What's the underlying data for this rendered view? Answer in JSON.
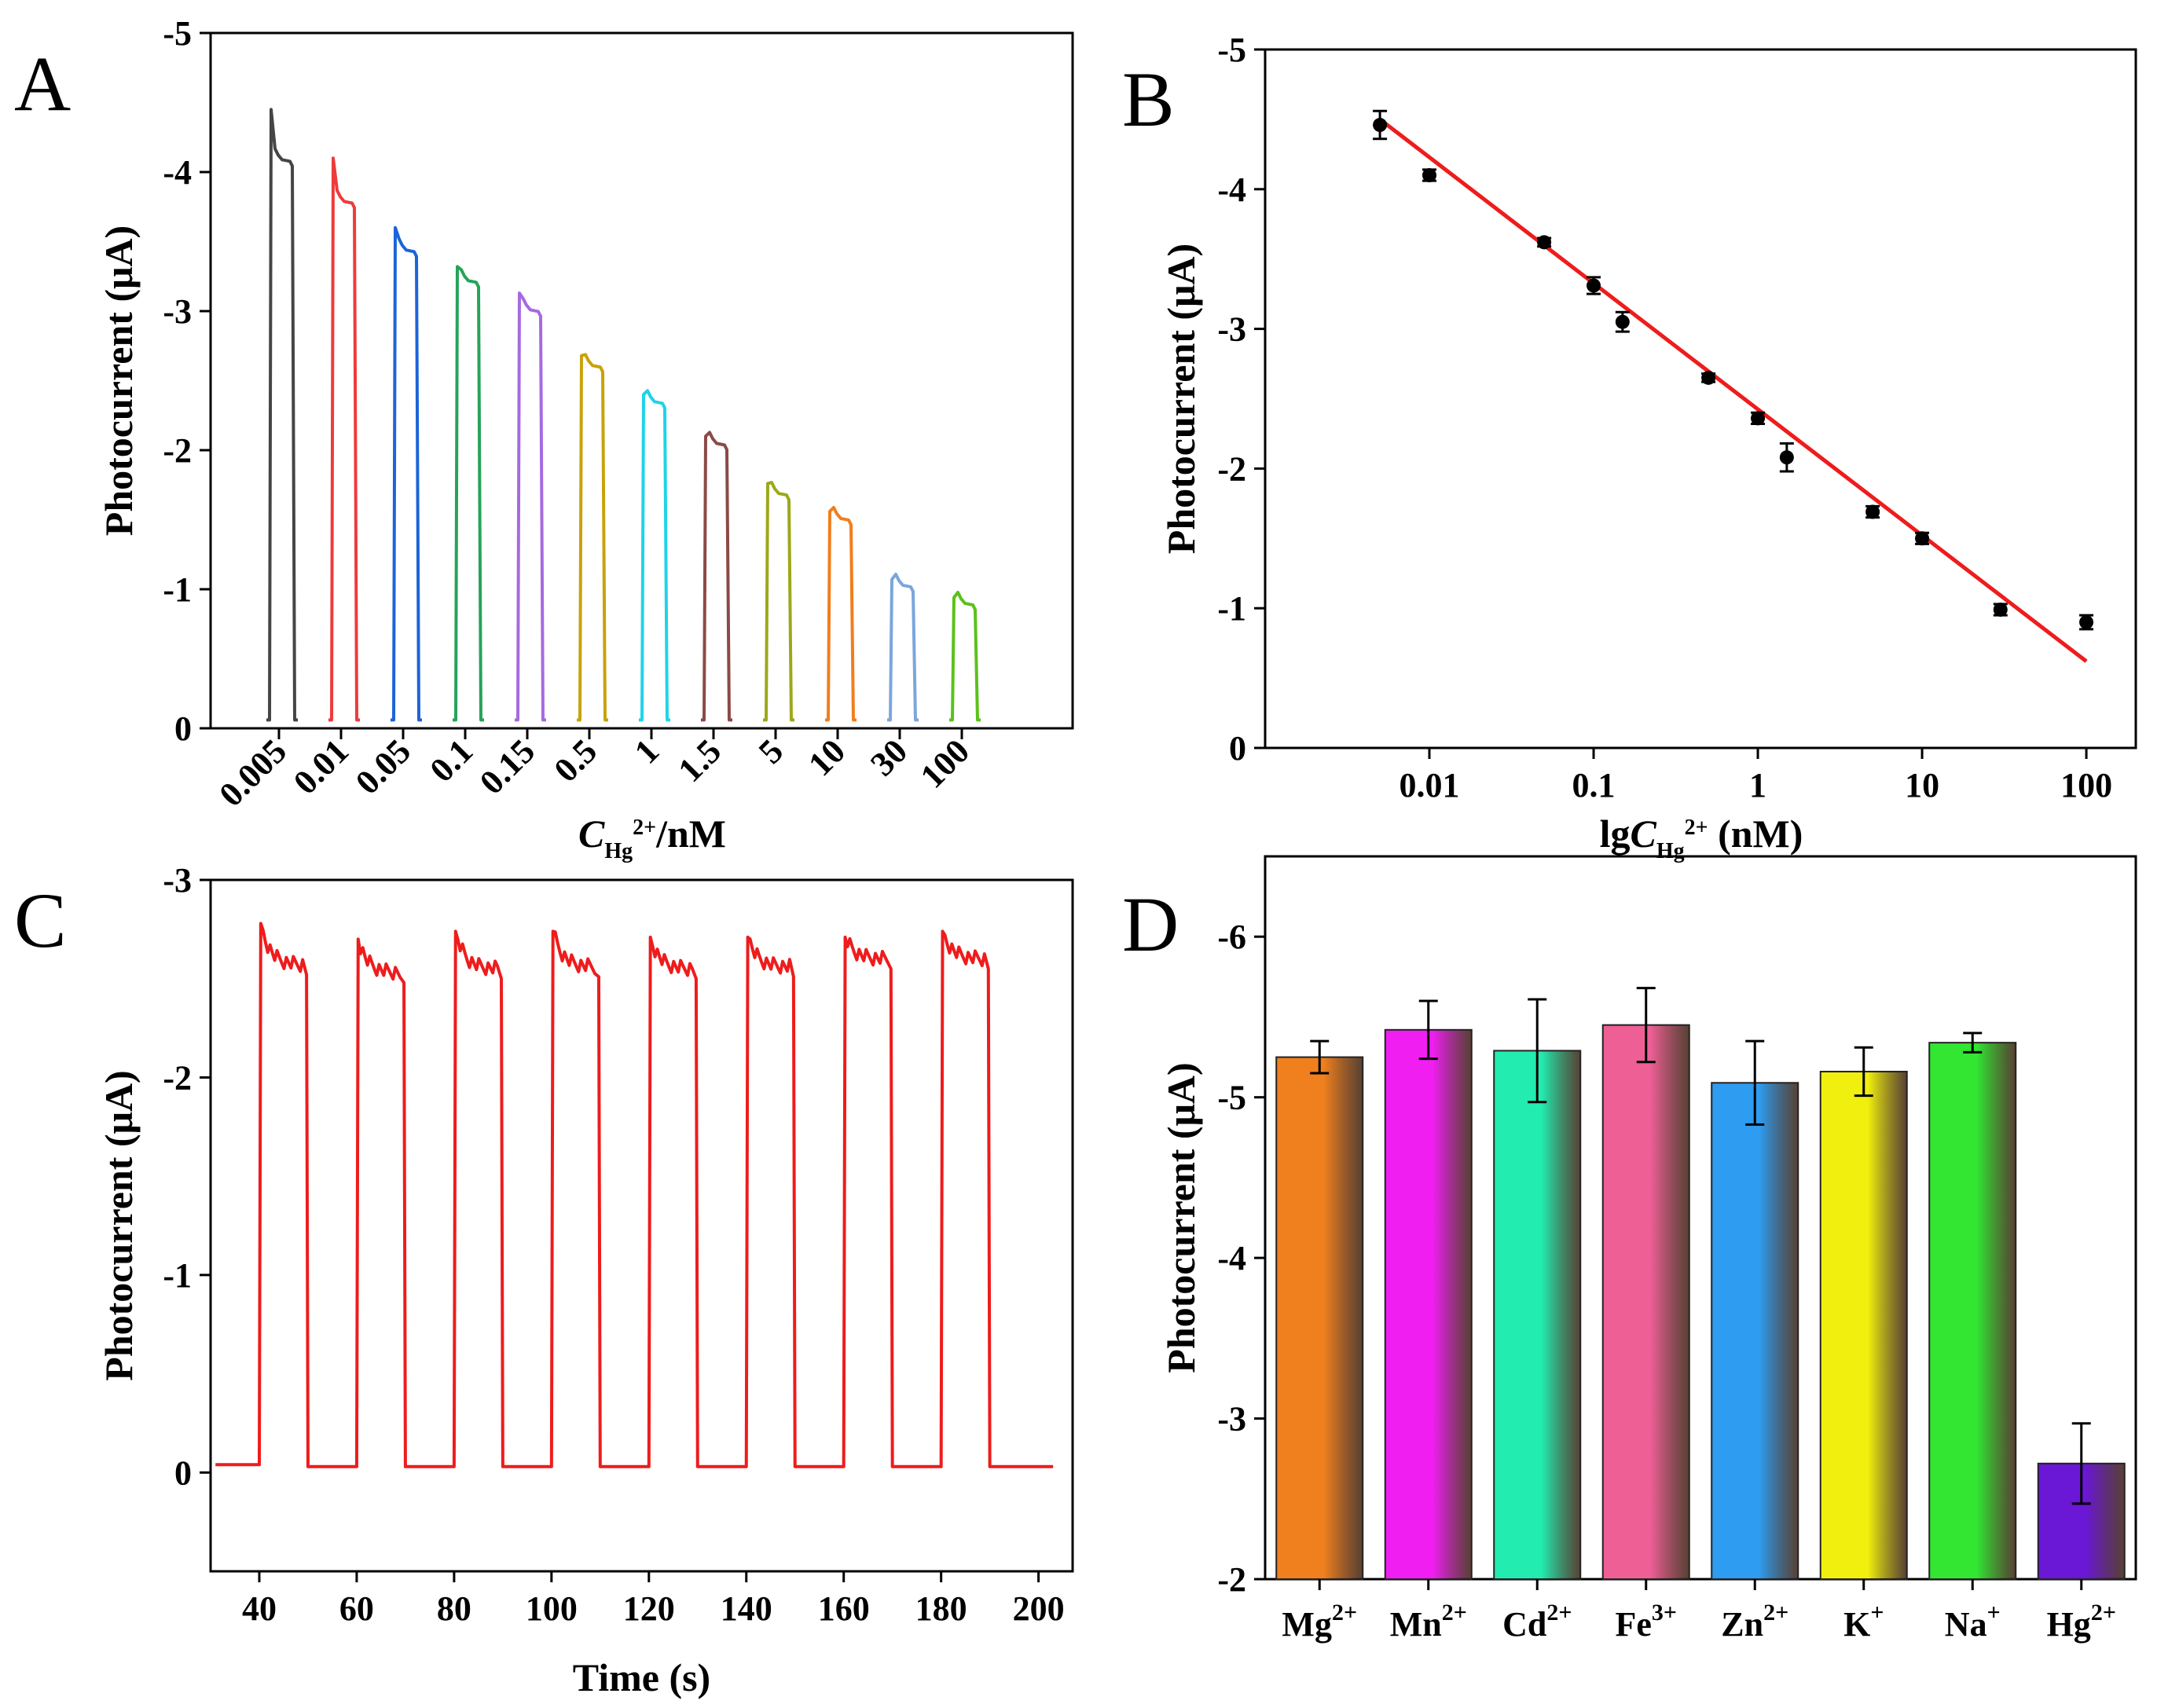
{
  "chart_data": [
    {
      "panel": "A",
      "type": "line",
      "ylabel": "Photocurrent (μA)",
      "xlabel": {
        "main": "C",
        "sub": "Hg",
        "sup": "2+",
        "suffix": "/nM"
      },
      "categories": [
        "0.005",
        "0.01",
        "0.05",
        "0.1",
        "0.15",
        "0.5",
        "1",
        "1.5",
        "5",
        "10",
        "30",
        "100"
      ],
      "peaks": [
        -4.45,
        -4.1,
        -3.6,
        -3.32,
        -3.13,
        -2.68,
        -2.4,
        -2.1,
        -1.76,
        -1.56,
        -1.07,
        -0.94
      ],
      "plateaus": [
        -4.1,
        -3.8,
        -3.45,
        -3.23,
        -3.02,
        -2.62,
        -2.36,
        -2.06,
        -1.7,
        -1.52,
        -1.04,
        -0.91
      ],
      "colors": [
        "#454545",
        "#ee3b3b",
        "#1c64d8",
        "#26a35a",
        "#a66ae0",
        "#c9a20a",
        "#1ed4e8",
        "#8b4a46",
        "#9ca81a",
        "#f07e1e",
        "#7ba6dd",
        "#5bc11c"
      ],
      "ylim": [
        0,
        -5
      ],
      "yticks": [
        "0",
        "-1",
        "-2",
        "-3",
        "-4",
        "-5"
      ]
    },
    {
      "panel": "B",
      "type": "scatter",
      "ylabel": "Photocurrent (μA)",
      "xlabel": {
        "main": "lgC",
        "sub": "Hg",
        "sup": "2+",
        "suffix": " (nM)"
      },
      "x": [
        0.005,
        0.01,
        0.05,
        0.1,
        0.15,
        0.5,
        1,
        1.5,
        5,
        10,
        30,
        100
      ],
      "y": [
        -4.46,
        -4.1,
        -3.62,
        -3.31,
        -3.05,
        -2.65,
        -2.36,
        -2.08,
        -1.69,
        -1.5,
        -0.99,
        -0.9
      ],
      "err": [
        0.1,
        0.04,
        0.03,
        0.06,
        0.07,
        0.03,
        0.04,
        0.1,
        0.04,
        0.04,
        0.04,
        0.05
      ],
      "fit": {
        "x": [
          0.005,
          100
        ],
        "y": [
          -4.5,
          -0.62
        ],
        "color": "#ee1c1c"
      },
      "xscale": "log",
      "xlim": [
        0.001,
        200
      ],
      "ylim": [
        0,
        -5
      ],
      "xticks": [
        "0.01",
        "0.1",
        "1",
        "10",
        "100"
      ],
      "yticks": [
        "0",
        "-1",
        "-2",
        "-3",
        "-4",
        "-5"
      ]
    },
    {
      "panel": "C",
      "type": "line",
      "ylabel": "Photocurrent (μA)",
      "xlabel": "Time (s)",
      "color": "#ee1c1c",
      "baseline": -0.03,
      "pulses_on": [
        40,
        60,
        80,
        100,
        120,
        140,
        160,
        180
      ],
      "pulse_duration": 10,
      "peaks": [
        -2.78,
        -2.7,
        -2.74,
        -2.74,
        -2.71,
        -2.71,
        -2.71,
        -2.74
      ],
      "plateaus": [
        -2.57,
        -2.53,
        -2.55,
        -2.56,
        -2.55,
        -2.56,
        -2.6,
        -2.6
      ],
      "xlim": [
        30,
        207
      ],
      "ylim": [
        0.5,
        -3
      ],
      "xticks": [
        "40",
        "60",
        "80",
        "100",
        "120",
        "140",
        "160",
        "180",
        "200"
      ],
      "yticks": [
        "0",
        "-1",
        "-2",
        "-3"
      ]
    },
    {
      "panel": "D",
      "type": "bar",
      "ylabel": "Photocurrent (μA)",
      "categories": [
        {
          "base": "Mg",
          "sup": "2+"
        },
        {
          "base": "Mn",
          "sup": "2+"
        },
        {
          "base": "Cd",
          "sup": "2+"
        },
        {
          "base": "Fe",
          "sup": "3+"
        },
        {
          "base": "Zn",
          "sup": "2+"
        },
        {
          "base": "K",
          "sup": "+"
        },
        {
          "base": "Na",
          "sup": "+"
        },
        {
          "base": "Hg",
          "sup": "2+"
        }
      ],
      "values": [
        -5.25,
        -5.42,
        -5.29,
        -5.45,
        -5.09,
        -5.16,
        -5.34,
        -2.72
      ],
      "err": [
        0.1,
        0.18,
        0.32,
        0.23,
        0.26,
        0.15,
        0.06,
        0.25
      ],
      "colors": [
        "#f07f1e",
        "#f01ef0",
        "#22ecb0",
        "#ee5f96",
        "#2e9cf0",
        "#f0ef0e",
        "#32e632",
        "#6a17d6"
      ],
      "ylim": [
        -2,
        -6.5
      ],
      "yticks": [
        "-2",
        "-3",
        "-4",
        "-5",
        "-6"
      ]
    }
  ]
}
